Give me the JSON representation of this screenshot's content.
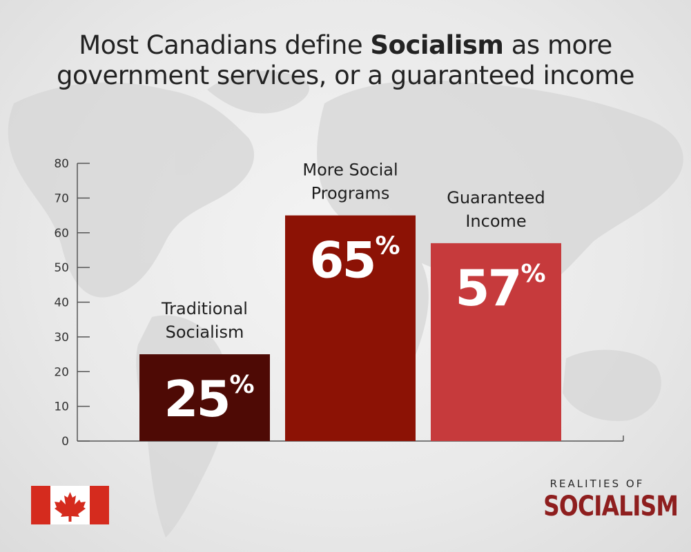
{
  "title": {
    "prefix": "Most Canadians define ",
    "emphasis": "Socialism",
    "suffix_line1": " as more",
    "line2": "government services, or a guaranteed income"
  },
  "brand": {
    "top": "REALITIES OF",
    "main": "SOCIALISM"
  },
  "colors": {
    "traditional": "#4e0a05",
    "social_programs": "#8c1205",
    "guaranteed_income": "#c63a3c",
    "axis": "#555555",
    "flag_red": "#d52b1e"
  },
  "flag_icon": "canada-flag-icon",
  "chart_data": {
    "type": "bar",
    "categories": [
      [
        "Traditional",
        "Socialism"
      ],
      [
        "More Social",
        "Programs"
      ],
      [
        "Guaranteed",
        "Income"
      ]
    ],
    "values": [
      25,
      65,
      57
    ],
    "value_labels": [
      "25",
      "65",
      "57"
    ],
    "percent_sign": "%",
    "yticks": [
      "0",
      "10",
      "20",
      "30",
      "40",
      "50",
      "60",
      "70",
      "80"
    ],
    "ylim": [
      0,
      80
    ],
    "grid": false,
    "legend": "none"
  }
}
